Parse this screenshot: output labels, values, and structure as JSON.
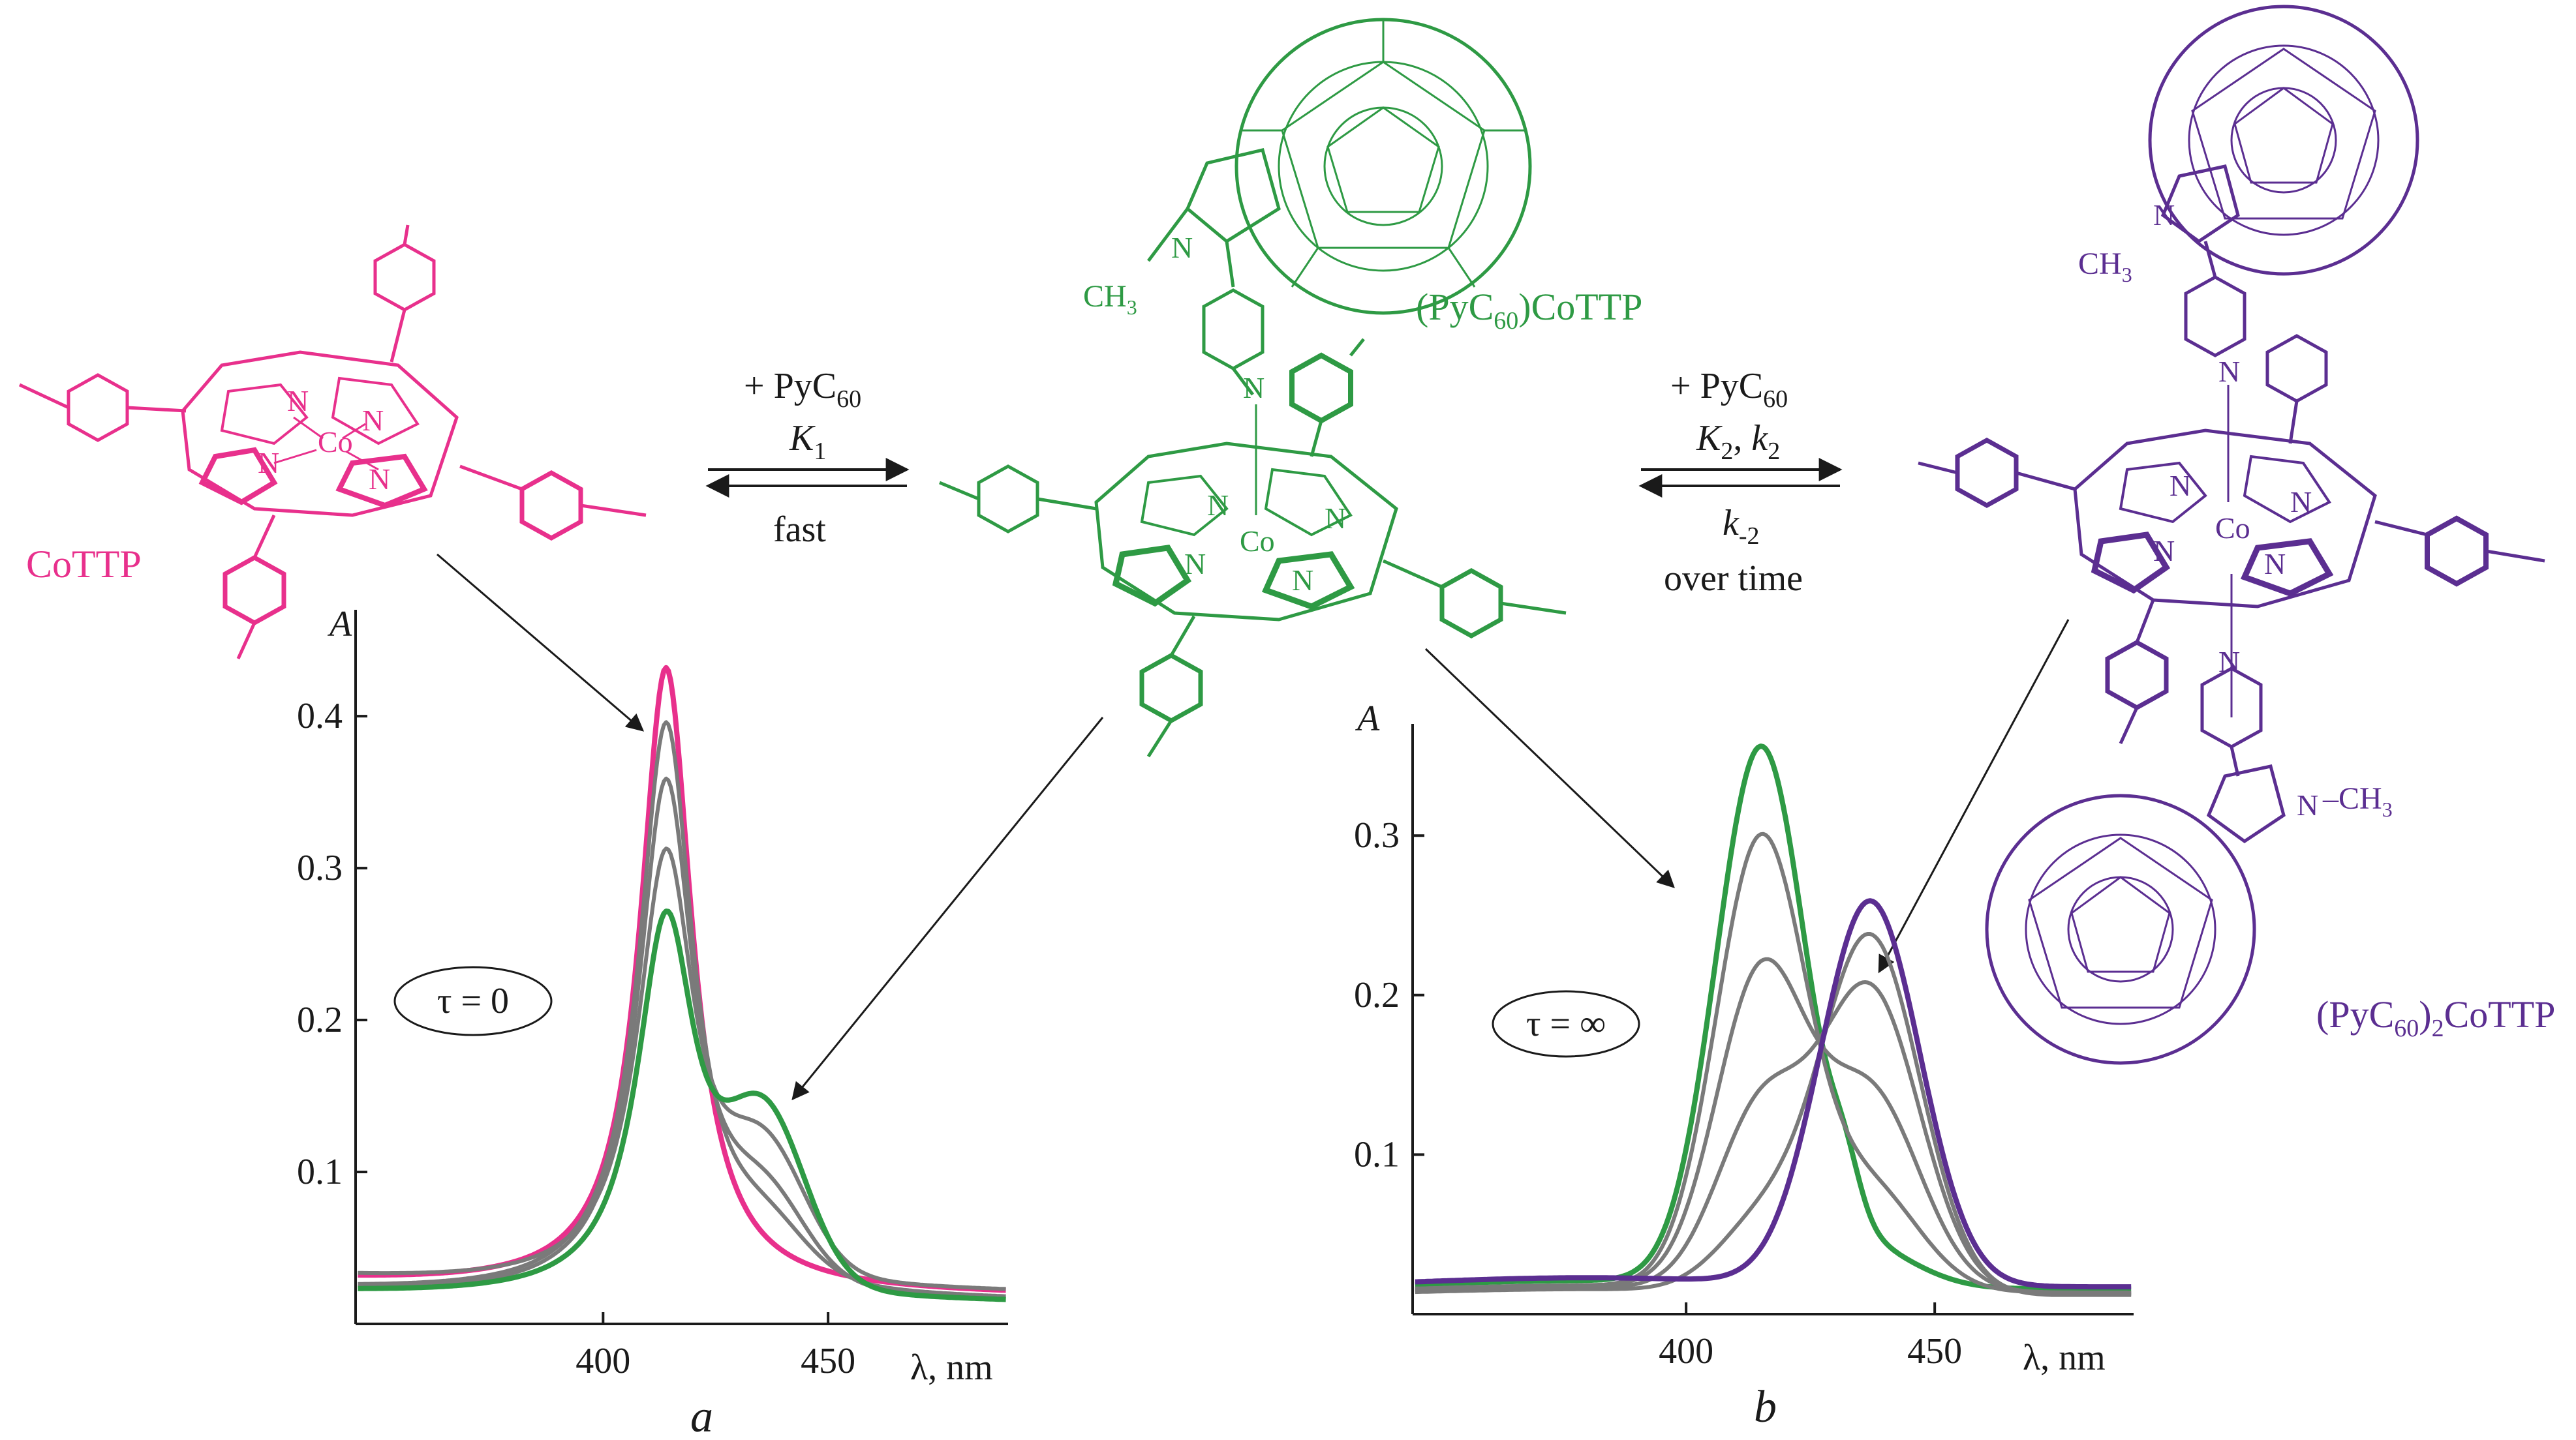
{
  "colors": {
    "cottp": "#e8308c",
    "mono": "#2e9a44",
    "bis": "#5b2e91",
    "intermediate": "#7a7a7a",
    "ink": "#1a1a1a"
  },
  "molecules": {
    "cottp_label": "CoTTP",
    "mono_label_pre": "(PyC",
    "mono_label_sub": "60",
    "mono_label_post": ")CoTTP",
    "bis_label_pre": "(PyC",
    "bis_label_sub1": "60",
    "bis_label_mid": ")",
    "bis_label_sub2": "2",
    "bis_label_post": "CoTTP",
    "atom_co": "Co",
    "atom_n": "N",
    "methyl_pre": "CH",
    "methyl_sub": "3",
    "methyl_right": "–CH"
  },
  "reactions": {
    "step1_reagent_pre": "+ PyC",
    "step1_reagent_sub": "60",
    "step1_k": "K",
    "step1_k_sub": "1",
    "step1_rate": "fast",
    "step2_reagent_pre": "+ PyC",
    "step2_reagent_sub": "60",
    "step2_k_a": "K",
    "step2_k_a_sub": "2",
    "step2_k_sep": ", ",
    "step2_k_b": "k",
    "step2_k_b_sub": "2",
    "step2_rev": "k",
    "step2_rev_sub": "-2",
    "step2_rate": "over time"
  },
  "chart_data": [
    {
      "type": "line",
      "panel_label": "a",
      "annotation": "τ = 0",
      "ylabel": "A",
      "xlabel": "λ, nm",
      "xlim": [
        345,
        490
      ],
      "ylim": [
        0,
        0.47
      ],
      "x_ticks": [
        400,
        450
      ],
      "y_ticks": [
        0.1,
        0.2,
        0.3,
        0.4
      ],
      "series": [
        {
          "role": "CoTTP",
          "color": "#e8308c",
          "peak_x": 414,
          "peak_y": 0.43,
          "baseline": 0.028,
          "shoulder_y": 0.0,
          "width": 7
        },
        {
          "role": "intermediate",
          "color": "#7a7a7a",
          "peak_x": 414,
          "peak_y": 0.393,
          "baseline": 0.022,
          "shoulder_y": 0.03,
          "width": 7.4
        },
        {
          "role": "intermediate",
          "color": "#7a7a7a",
          "peak_x": 414,
          "peak_y": 0.355,
          "baseline": 0.02,
          "shoulder_y": 0.05,
          "width": 7.6
        },
        {
          "role": "intermediate",
          "color": "#7a7a7a",
          "peak_x": 414,
          "peak_y": 0.307,
          "baseline": 0.03,
          "shoulder_y": 0.075,
          "width": 7.8
        },
        {
          "role": "(PyC60)CoTTP",
          "color": "#2e9a44",
          "peak_x": 414,
          "peak_y": 0.265,
          "baseline": 0.02,
          "shoulder_y": 0.105,
          "width": 8
        }
      ]
    },
    {
      "type": "line",
      "panel_label": "b",
      "annotation": "τ = ∞",
      "ylabel": "A",
      "xlabel": "λ, nm",
      "xlim": [
        345,
        490
      ],
      "ylim": [
        0,
        0.37
      ],
      "x_ticks": [
        400,
        450
      ],
      "y_ticks": [
        0.1,
        0.2,
        0.3
      ],
      "series": [
        {
          "role": "(PyC60)CoTTP",
          "color": "#2e9a44",
          "peak1_y": 0.348,
          "peak2_y": 0.03,
          "baseline": 0.035
        },
        {
          "role": "intermediate",
          "color": "#7a7a7a",
          "peak1_y": 0.29,
          "peak2_y": 0.07,
          "baseline": 0.03
        },
        {
          "role": "intermediate",
          "color": "#7a7a7a",
          "peak1_y": 0.205,
          "peak2_y": 0.13,
          "baseline": 0.03
        },
        {
          "role": "intermediate",
          "color": "#7a7a7a",
          "peak1_y": 0.12,
          "peak2_y": 0.195,
          "baseline": 0.028
        },
        {
          "role": "intermediate",
          "color": "#7a7a7a",
          "peak1_y": 0.05,
          "peak2_y": 0.23,
          "baseline": 0.026
        },
        {
          "role": "(PyC60)2CoTTP",
          "color": "#5b2e91",
          "peak1_y": 0.0,
          "peak2_y": 0.25,
          "baseline": 0.038
        }
      ]
    }
  ]
}
